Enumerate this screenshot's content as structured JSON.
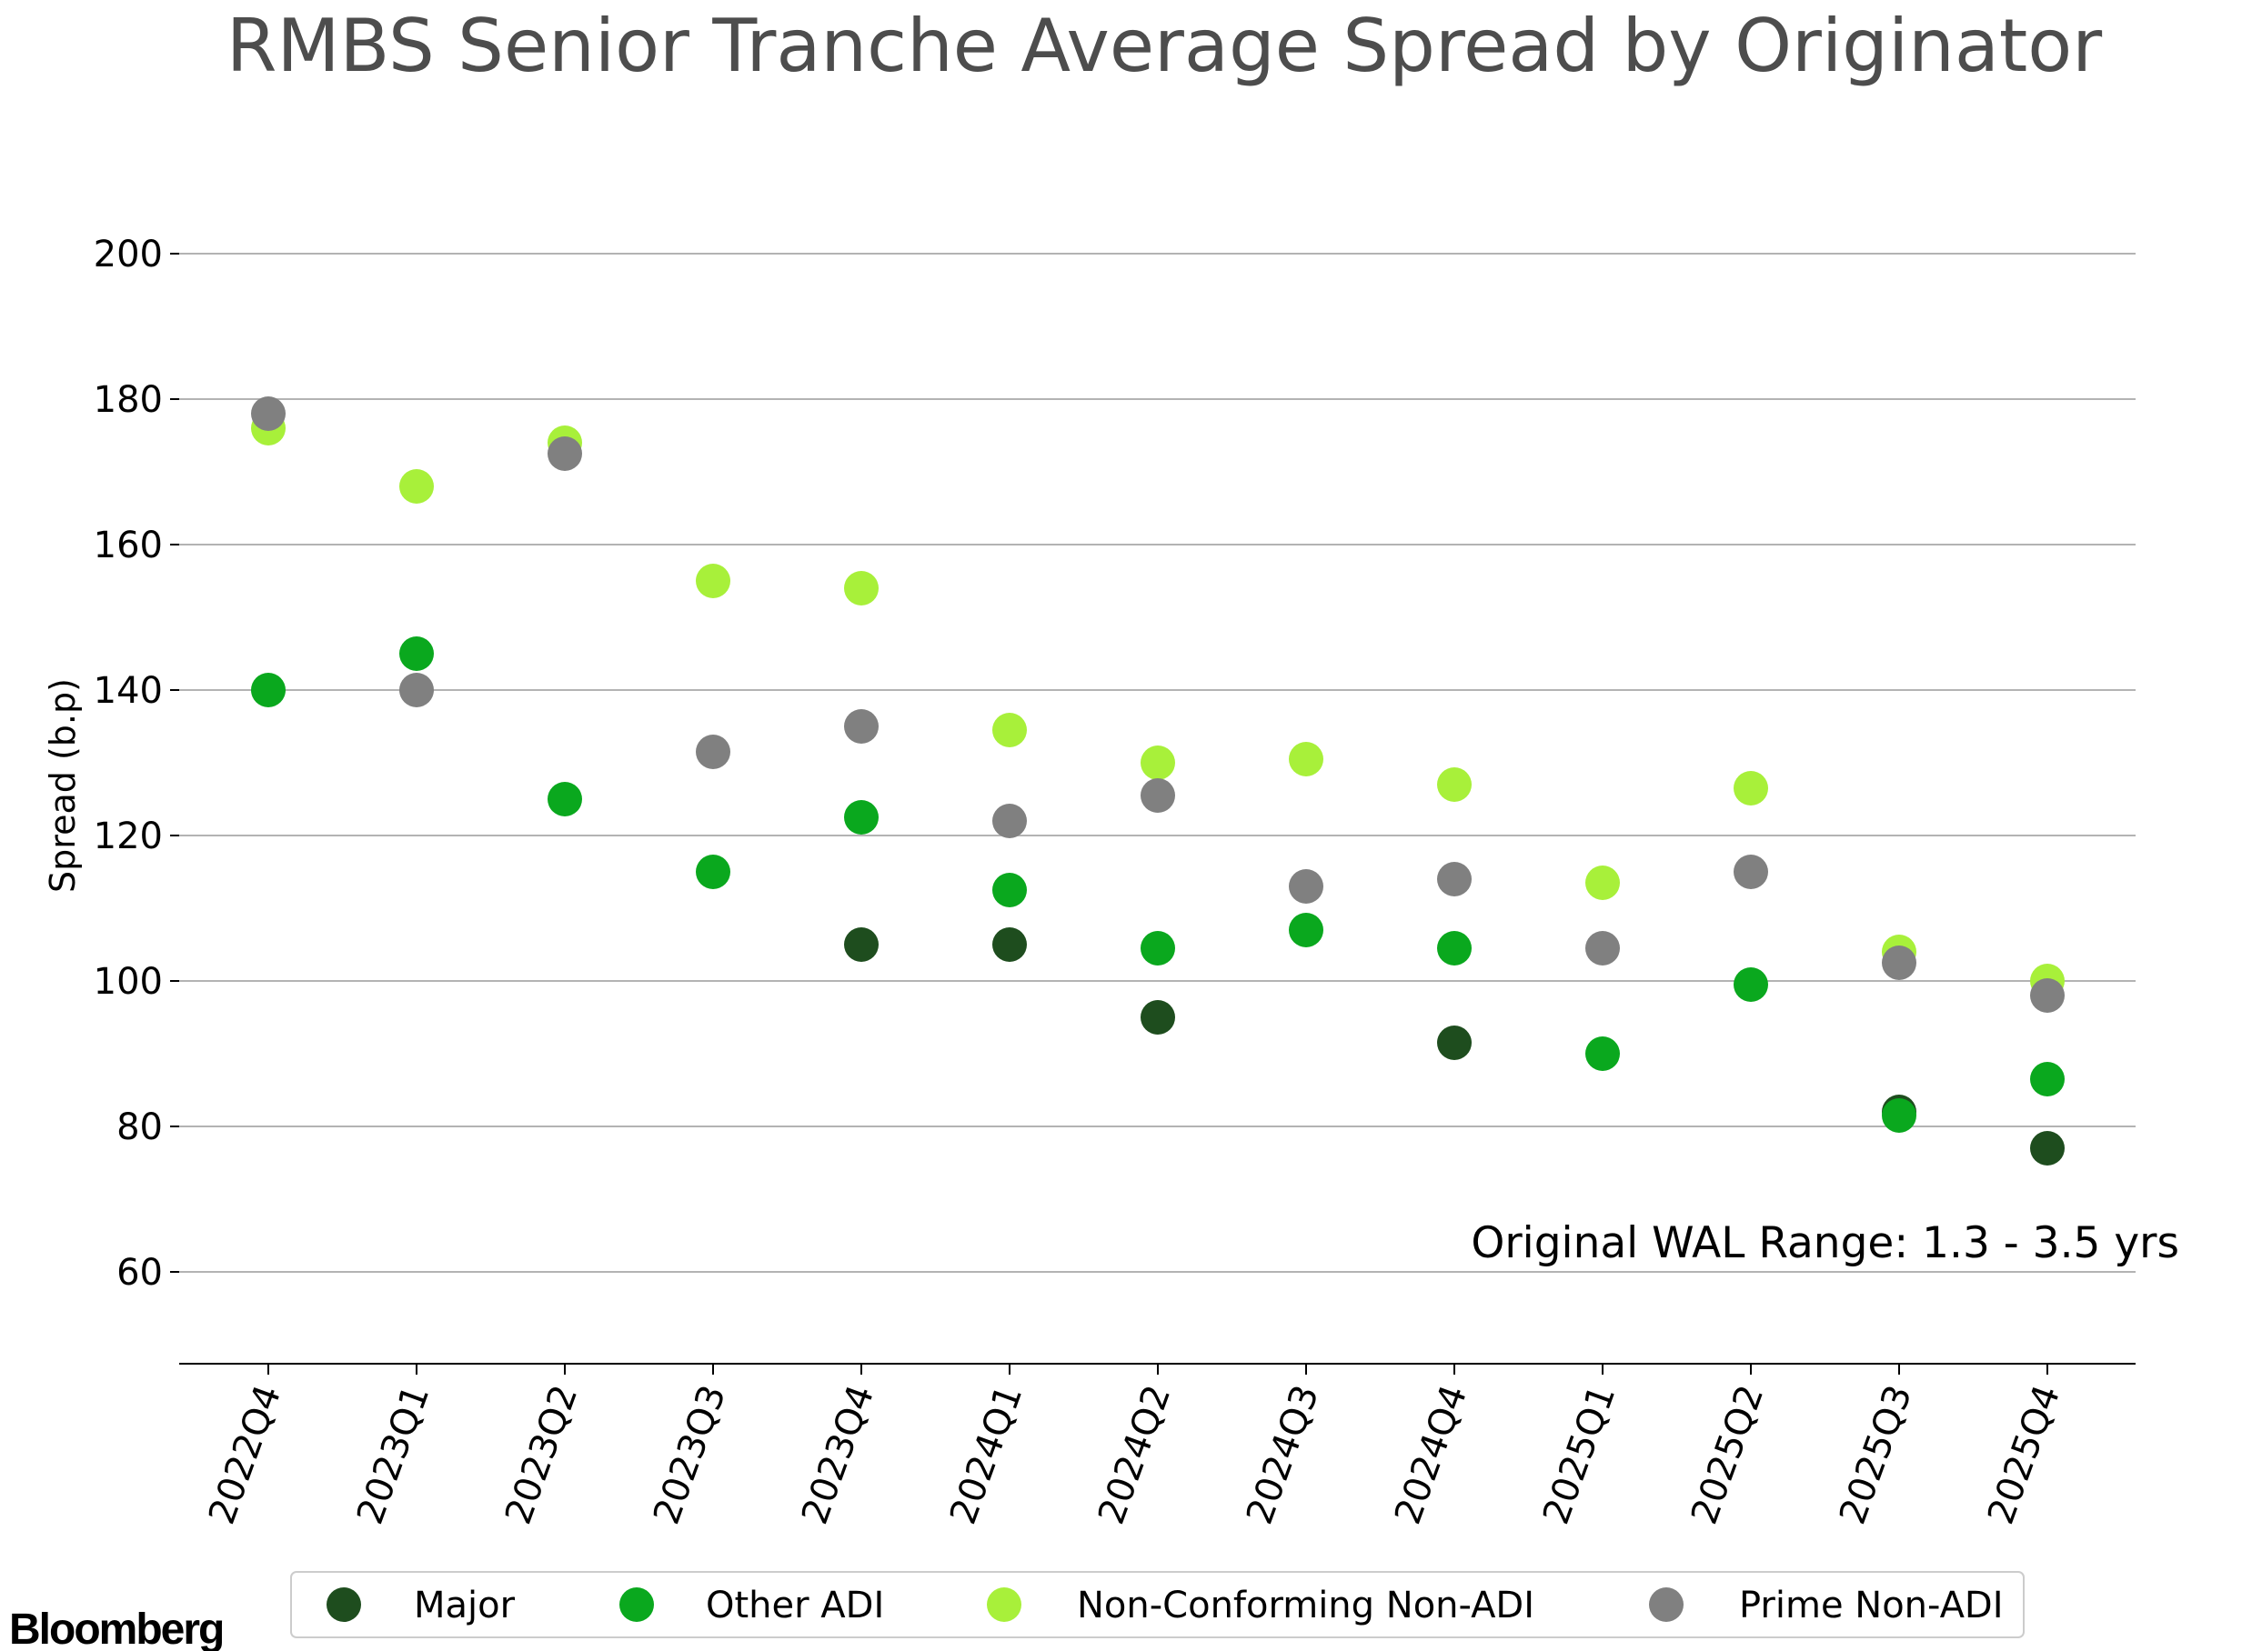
{
  "chart_data": {
    "type": "scatter",
    "title": "RMBS Senior Tranche Average Spread by Originator",
    "ylabel": "Spread (b.p)",
    "xlabel": "",
    "ylim": [
      47,
      200
    ],
    "yticks": [
      60,
      80,
      100,
      120,
      140,
      160,
      180,
      200
    ],
    "grid": "horizontal",
    "legend": "bottom",
    "annotation": "Original WAL Range: 1.3 - 3.5 yrs",
    "source": "Bloomberg",
    "categories": [
      "2022Q4",
      "2023Q1",
      "2023Q2",
      "2023Q3",
      "2023Q4",
      "2024Q1",
      "2024Q2",
      "2024Q3",
      "2024Q4",
      "2025Q1",
      "2025Q2",
      "2025Q3",
      "2025Q4"
    ],
    "series": [
      {
        "name": "Major",
        "color": "#1e4d1e",
        "values": [
          null,
          null,
          null,
          null,
          105,
          105,
          95,
          null,
          91.5,
          null,
          null,
          82,
          77
        ]
      },
      {
        "name": "Other ADI",
        "color": "#0aa81e",
        "values": [
          140,
          145,
          125,
          115,
          122.5,
          112.5,
          104.5,
          107,
          104.5,
          90,
          99.5,
          81.5,
          86.5
        ]
      },
      {
        "name": "Non-Conforming Non-ADI",
        "color": "#a8f03a",
        "values": [
          176,
          168,
          174,
          155,
          154,
          134.5,
          130,
          130.5,
          127,
          113.5,
          126.5,
          104,
          100
        ]
      },
      {
        "name": "Prime Non-ADI",
        "color": "#808080",
        "values": [
          178,
          140,
          172.5,
          131.5,
          135,
          122,
          125.5,
          113,
          114,
          104.5,
          115,
          102.5,
          98
        ]
      }
    ]
  }
}
